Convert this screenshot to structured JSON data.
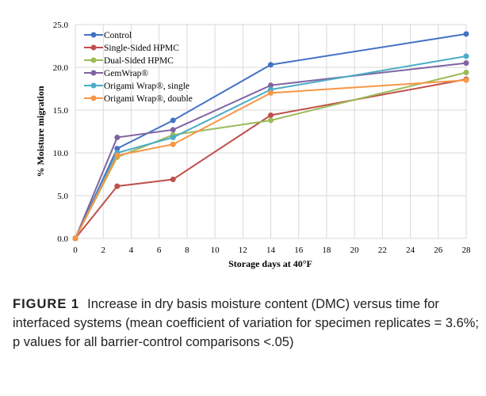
{
  "chart_data": {
    "type": "line",
    "title": "",
    "xlabel": "Storage days at 40°F",
    "ylabel": "% Moisture migration",
    "xlim": [
      0,
      28
    ],
    "ylim": [
      0,
      25
    ],
    "xticks": [
      0,
      2,
      4,
      6,
      8,
      10,
      12,
      14,
      16,
      18,
      20,
      22,
      24,
      26,
      28
    ],
    "yticks": [
      "0.0",
      "5.0",
      "10.0",
      "15.0",
      "20.0",
      "25.0"
    ],
    "grid": true,
    "legend_placement": "top-left",
    "x": [
      0,
      3,
      7,
      14,
      28
    ],
    "series": [
      {
        "name": "Control",
        "color": "#4472C4",
        "values": [
          0,
          10.5,
          13.8,
          20.3,
          23.9
        ]
      },
      {
        "name": "Single-Sided HPMC",
        "color": "#C0504D",
        "values": [
          0,
          6.1,
          6.9,
          14.4,
          18.6
        ]
      },
      {
        "name": "Dual-Sided HPMC",
        "color": "#9BBB59",
        "values": [
          0,
          9.5,
          12.1,
          13.8,
          19.4
        ]
      },
      {
        "name": "GemWrap®",
        "color": "#8064A2",
        "values": [
          0,
          11.8,
          12.7,
          17.9,
          20.5
        ]
      },
      {
        "name": "Origami Wrap®, single",
        "color": "#4BACC6",
        "values": [
          0,
          10.0,
          11.8,
          17.4,
          21.3
        ]
      },
      {
        "name": "Origami Wrap®, double",
        "color": "#F79646",
        "values": [
          0,
          9.7,
          11.0,
          17.0,
          18.5
        ]
      }
    ]
  },
  "caption": {
    "label": "FIGURE 1",
    "text": "Increase in dry basis moisture content (DMC) versus time for interfaced systems (mean coefficient of variation for specimen replicates = 3.6%; p values for all barrier-control comparisons <.05)"
  }
}
